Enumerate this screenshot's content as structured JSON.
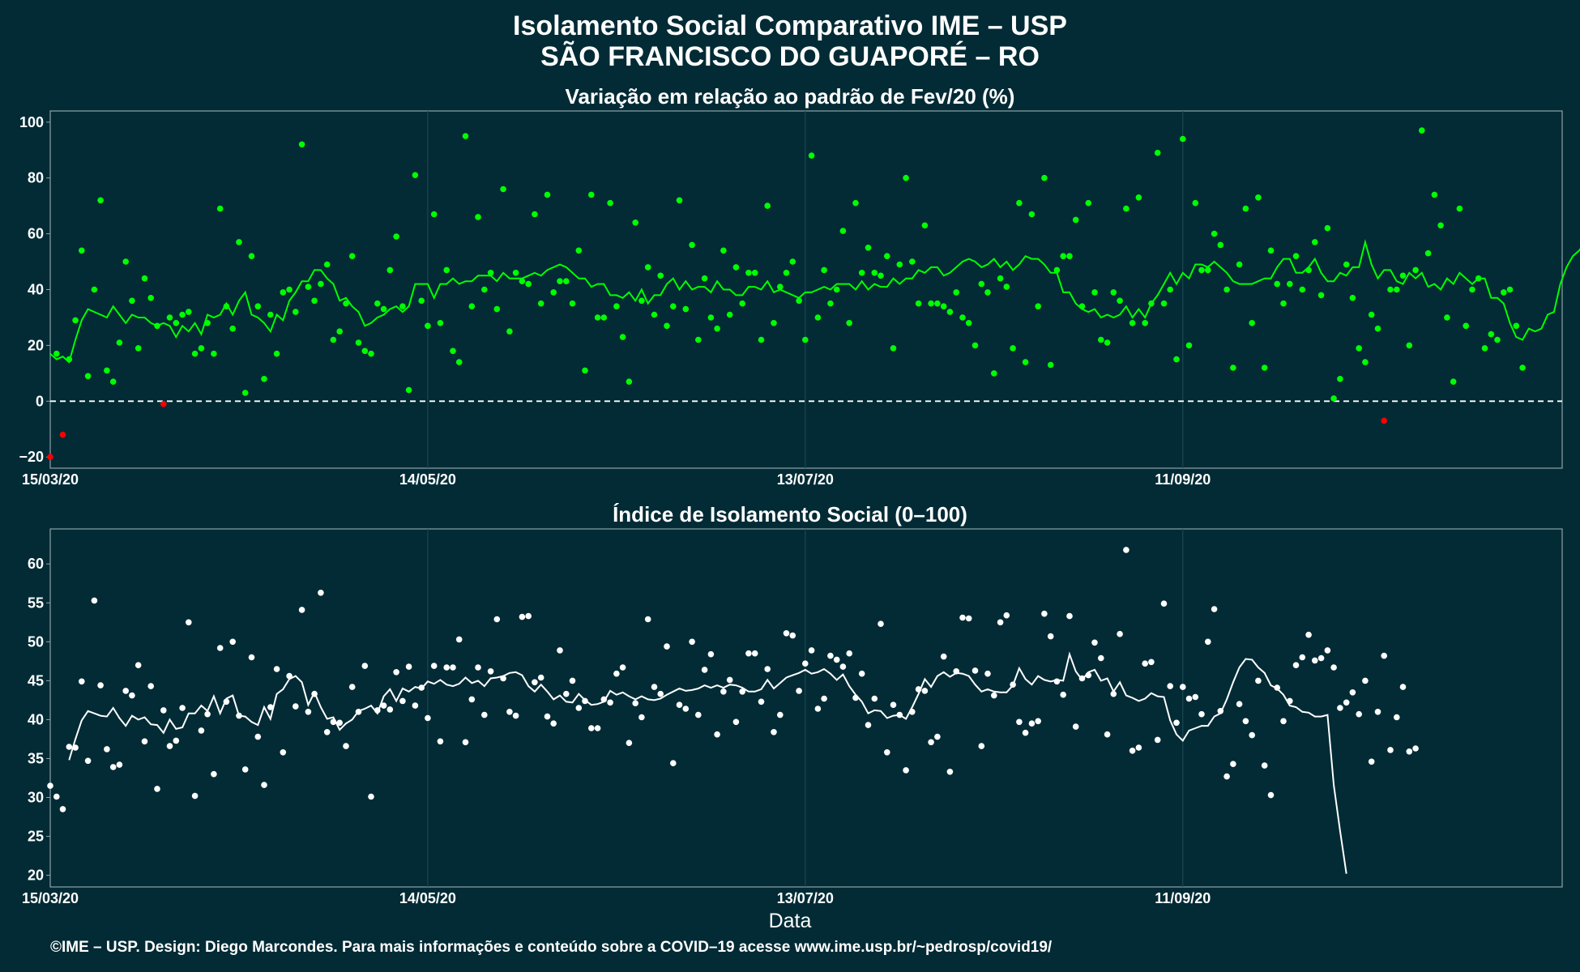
{
  "title_line1": "Isolamento Social Comparativo IME – USP",
  "title_line2": "SÃO FRANCISCO DO GUAPORÉ – RO",
  "footer": "©IME – USP. Design: Diego Marcondes. Para mais informações e conteúdo sobre a COVID–19 acesse www.ime.usp.br/~pedrosp/covid19/",
  "colors": {
    "background": "#022b35",
    "positive_points": "#00ff00",
    "negative_points": "#ff0000",
    "trend_top": "#00ff00",
    "index_points": "#ffffff",
    "trend_bottom": "#ffffff",
    "panel_border": "#8fa3a8"
  },
  "chart_data": [
    {
      "type": "scatter",
      "title": "Variação em relação ao padrão de Fev/20 (%)",
      "xlabel": "",
      "ylabel": "",
      "x_ticks": [
        "15/03/20",
        "14/05/20",
        "13/07/20",
        "11/09/20"
      ],
      "y_ticks": [
        -20,
        0,
        20,
        40,
        60,
        80,
        100
      ],
      "ylim": [
        -24,
        104
      ],
      "start_date": "15/03/20",
      "reference_line": 0,
      "series": [
        {
          "kind": "points",
          "values": [
            -20,
            17,
            -12,
            15,
            29,
            54,
            9,
            40,
            72,
            11,
            7,
            21,
            50,
            36,
            19,
            44,
            37,
            27,
            -1,
            30,
            28,
            31,
            32,
            17,
            19,
            28,
            17,
            69,
            34,
            26,
            57,
            3,
            52,
            34,
            8,
            31,
            17,
            39,
            40,
            32,
            92,
            41,
            36,
            42,
            49,
            22,
            25,
            35,
            52,
            21,
            18,
            17,
            35,
            33,
            47,
            59,
            34,
            4,
            81,
            36,
            27,
            67,
            28,
            47,
            18,
            14,
            95,
            34,
            66,
            40,
            46,
            33,
            76,
            25,
            46,
            43,
            42,
            67,
            35,
            74,
            39,
            43,
            43,
            35,
            54,
            11,
            74,
            30,
            30,
            71,
            34,
            23,
            7,
            64,
            36,
            48,
            31,
            45,
            27,
            34,
            72,
            33,
            56,
            22,
            44,
            30,
            26,
            54,
            31,
            48,
            35,
            46,
            46,
            22,
            70,
            28,
            41,
            46,
            50,
            36,
            22,
            88,
            30,
            47,
            35,
            40,
            61,
            28,
            71,
            46,
            55,
            46,
            45,
            52,
            19,
            49,
            80,
            50,
            35,
            63,
            35,
            35,
            34,
            32,
            39,
            30,
            28,
            20,
            42,
            39,
            10,
            44,
            41,
            19,
            71,
            14,
            67,
            34,
            80,
            13,
            47,
            52,
            52,
            65,
            34,
            71,
            39,
            22,
            21,
            39,
            36,
            69,
            28,
            73,
            28,
            35,
            89,
            35,
            40,
            15,
            94,
            20,
            71,
            47,
            47,
            60,
            56,
            40,
            12,
            49,
            69,
            28,
            73,
            12,
            54,
            42,
            35,
            42,
            52,
            40,
            47,
            57,
            38,
            62,
            1,
            8,
            49,
            37,
            19,
            14,
            31,
            26,
            -7,
            40,
            40,
            45,
            20,
            47,
            97,
            53,
            74,
            63,
            30,
            7,
            69,
            27,
            40,
            44,
            19,
            24,
            22,
            39,
            40,
            27,
            12
          ]
        },
        {
          "kind": "trend",
          "start_index": 0,
          "values": [
            17,
            15,
            16,
            14,
            22,
            29,
            33,
            32,
            31,
            30,
            34,
            31,
            28,
            31,
            30,
            30,
            28,
            27,
            28,
            27,
            23,
            27,
            25,
            28,
            24,
            31,
            30,
            31,
            35,
            31,
            36,
            39,
            31,
            30,
            28,
            25,
            31,
            29,
            36,
            39,
            43,
            43,
            47,
            47,
            44,
            42,
            36,
            37,
            34,
            32,
            27,
            28,
            30,
            31,
            33,
            34,
            32,
            34,
            42,
            42,
            42,
            37,
            42,
            42,
            44,
            42,
            43,
            43,
            45,
            45,
            45,
            43,
            46,
            44,
            44,
            44,
            45,
            46,
            45,
            47,
            48,
            49,
            48,
            46,
            44,
            44,
            41,
            42,
            42,
            38,
            38,
            37,
            39,
            36,
            40,
            35,
            38,
            38,
            42,
            44,
            40,
            43,
            40,
            41,
            41,
            39,
            43,
            40,
            40,
            38,
            38,
            41,
            41,
            40,
            43,
            39,
            40,
            39,
            38,
            37,
            39,
            39,
            40,
            41,
            40,
            42,
            42,
            42,
            40,
            43,
            40,
            42,
            41,
            41,
            44,
            42,
            44,
            44,
            47,
            46,
            48,
            48,
            45,
            46,
            48,
            50,
            51,
            50,
            48,
            49,
            51,
            48,
            50,
            47,
            49,
            52,
            51,
            51,
            49,
            46,
            46,
            39,
            39,
            35,
            33,
            32,
            33,
            30,
            31,
            30,
            31,
            34,
            30,
            33,
            30,
            35,
            38,
            42,
            46,
            42,
            46,
            44,
            49,
            49,
            48,
            50,
            48,
            46,
            43,
            42,
            42,
            42,
            43,
            44,
            44,
            48,
            51,
            51,
            46,
            46,
            48,
            51,
            46,
            43,
            43,
            46,
            45,
            48,
            48,
            57,
            49,
            44,
            47,
            47,
            43,
            42,
            46,
            44,
            46,
            41,
            42,
            40,
            44,
            42,
            46,
            44,
            42,
            44,
            44,
            37,
            37,
            35,
            28,
            23,
            22,
            26,
            25,
            26,
            31,
            32,
            42,
            48,
            52,
            54,
            57,
            55,
            52,
            48,
            45,
            44,
            40,
            34,
            33,
            35,
            31,
            31,
            30,
            27,
            27
          ]
        }
      ]
    },
    {
      "type": "scatter",
      "title": "Índice de Isolamento Social (0–100)",
      "xlabel": "Data",
      "ylabel": "",
      "x_ticks": [
        "15/03/20",
        "14/05/20",
        "13/07/20",
        "11/09/20"
      ],
      "y_ticks": [
        20,
        25,
        30,
        35,
        40,
        45,
        50,
        55,
        60
      ],
      "ylim": [
        18.5,
        64.5
      ],
      "start_date": "15/03/20",
      "series": [
        {
          "kind": "points",
          "values": [
            31.5,
            30.1,
            28.5,
            36.5,
            36.4,
            44.9,
            34.7,
            55.3,
            44.4,
            36.2,
            33.9,
            34.2,
            43.7,
            43.1,
            47.0,
            37.2,
            44.3,
            31.1,
            41.2,
            36.6,
            37.3,
            41.5,
            52.5,
            30.2,
            38.6,
            40.7,
            33.0,
            49.2,
            42.3,
            50.0,
            40.5,
            33.6,
            48.0,
            37.8,
            31.6,
            41.6,
            46.5,
            35.8,
            45.6,
            41.7,
            54.1,
            41.0,
            43.3,
            56.3,
            38.4,
            39.7,
            39.6,
            36.6,
            44.2,
            41.0,
            46.9,
            30.1,
            41.2,
            41.8,
            41.3,
            46.1,
            42.4,
            46.8,
            41.8,
            44.1,
            40.2,
            46.9,
            37.2,
            46.7,
            46.7,
            50.3,
            37.1,
            42.6,
            46.7,
            40.6,
            46.2,
            52.9,
            45.3,
            41.0,
            40.5,
            53.2,
            53.3,
            44.8,
            45.4,
            40.4,
            39.5,
            48.9,
            43.3,
            45.0,
            41.5,
            42.4,
            38.9,
            38.9,
            42.6,
            42.2,
            45.9,
            46.7,
            37.0,
            42.1,
            40.3,
            52.9,
            44.2,
            43.3,
            49.4,
            34.4,
            41.9,
            41.4,
            50.0,
            40.6,
            46.4,
            48.4,
            38.1,
            43.6,
            45.1,
            39.7,
            43.6,
            48.5,
            48.5,
            42.3,
            46.5,
            38.4,
            40.6,
            51.1,
            50.8,
            43.7,
            47.2,
            48.9,
            41.4,
            42.7,
            48.2,
            47.7,
            46.8,
            48.5,
            42.8,
            45.9,
            39.3,
            42.7,
            52.3,
            35.8,
            41.9,
            40.6,
            33.5,
            41.0,
            43.9,
            43.7,
            37.1,
            37.8,
            48.1,
            33.3,
            46.2,
            53.1,
            53.0,
            46.3,
            36.6,
            45.9,
            43.1,
            52.5,
            53.4,
            44.5,
            39.7,
            38.3,
            39.5,
            39.8,
            53.6,
            50.7,
            44.9,
            43.2,
            53.3,
            39.1,
            45.3,
            45.7,
            49.9,
            47.9,
            38.1,
            43.3,
            51.0,
            61.8,
            36.0,
            36.4,
            47.2,
            47.4,
            37.4,
            54.9,
            44.3,
            39.6,
            44.2,
            42.7,
            42.9,
            40.7,
            50.0,
            54.2,
            41.1,
            32.7,
            34.3,
            42.0,
            39.8,
            38.0,
            45.0,
            34.1,
            30.3,
            44.1,
            39.8,
            42.4,
            47.0,
            48.0,
            50.9,
            47.6,
            47.9,
            48.9,
            46.7,
            41.5,
            42.2,
            43.5,
            40.7,
            45.0,
            34.6,
            41.0,
            48.2,
            36.1,
            40.3,
            44.2,
            35.9,
            36.3
          ]
        },
        {
          "kind": "trend",
          "start_index": 3,
          "values": [
            34.8,
            37.5,
            39.9,
            41.1,
            40.8,
            40.5,
            40.4,
            41.5,
            40.2,
            39.2,
            40.5,
            40.0,
            40.3,
            39.4,
            39.3,
            38.3,
            40.0,
            38.8,
            39.0,
            40.8,
            40.8,
            41.8,
            41.1,
            43.0,
            40.8,
            42.7,
            43.1,
            40.5,
            40.4,
            39.7,
            39.3,
            41.6,
            40.1,
            43.3,
            43.9,
            45.2,
            45.6,
            44.8,
            41.9,
            43.5,
            41.6,
            40.1,
            40.3,
            38.7,
            39.5,
            40.0,
            41.1,
            41.4,
            41.8,
            40.8,
            43.0,
            43.9,
            42.4,
            44.0,
            43.6,
            44.2,
            44.0,
            44.9,
            44.6,
            45.1,
            44.5,
            44.3,
            44.6,
            45.4,
            44.7,
            45.0,
            44.3,
            45.3,
            45.4,
            45.6,
            46.0,
            46.1,
            45.7,
            44.3,
            43.6,
            44.5,
            43.6,
            42.6,
            43.1,
            42.3,
            42.2,
            43.3,
            42.5,
            41.9,
            42.0,
            42.3,
            43.7,
            43.2,
            43.5,
            43.0,
            42.6,
            43.0,
            42.6,
            42.5,
            42.7,
            43.2,
            43.6,
            44.0,
            43.7,
            43.8,
            44.0,
            44.4,
            44.1,
            44.4,
            44.1,
            44.5,
            44.4,
            44.1,
            43.6,
            43.6,
            43.9,
            45.1,
            44.0,
            44.7,
            45.4,
            45.7,
            46.0,
            46.4,
            45.9,
            46.1,
            46.5,
            45.9,
            45.1,
            45.8,
            44.3,
            43.2,
            42.3,
            40.8,
            41.2,
            41.1,
            40.2,
            40.5,
            40.6,
            40.1,
            41.6,
            43.3,
            45.2,
            44.2,
            45.6,
            46.1,
            45.5,
            46.0,
            45.9,
            45.6,
            44.5,
            43.6,
            43.9,
            43.6,
            43.5,
            43.5,
            44.4,
            46.6,
            45.2,
            44.5,
            45.6,
            45.1,
            44.9,
            45.1,
            45.0,
            48.4,
            46.2,
            45.1,
            46.1,
            46.4,
            45.0,
            45.3,
            43.6,
            44.8,
            43.1,
            42.8,
            42.4,
            42.7,
            43.4,
            43.0,
            42.9,
            39.9,
            38.1,
            37.3,
            38.6,
            38.9,
            39.2,
            39.2,
            40.4,
            40.8,
            42.6,
            44.8,
            46.7,
            47.8,
            47.7,
            46.7,
            46.0,
            44.4,
            44.0,
            43.2,
            41.8,
            41.6,
            41.0,
            40.9,
            40.4,
            40.4,
            40.6,
            31.6,
            25.7,
            20.2
          ]
        }
      ]
    }
  ]
}
